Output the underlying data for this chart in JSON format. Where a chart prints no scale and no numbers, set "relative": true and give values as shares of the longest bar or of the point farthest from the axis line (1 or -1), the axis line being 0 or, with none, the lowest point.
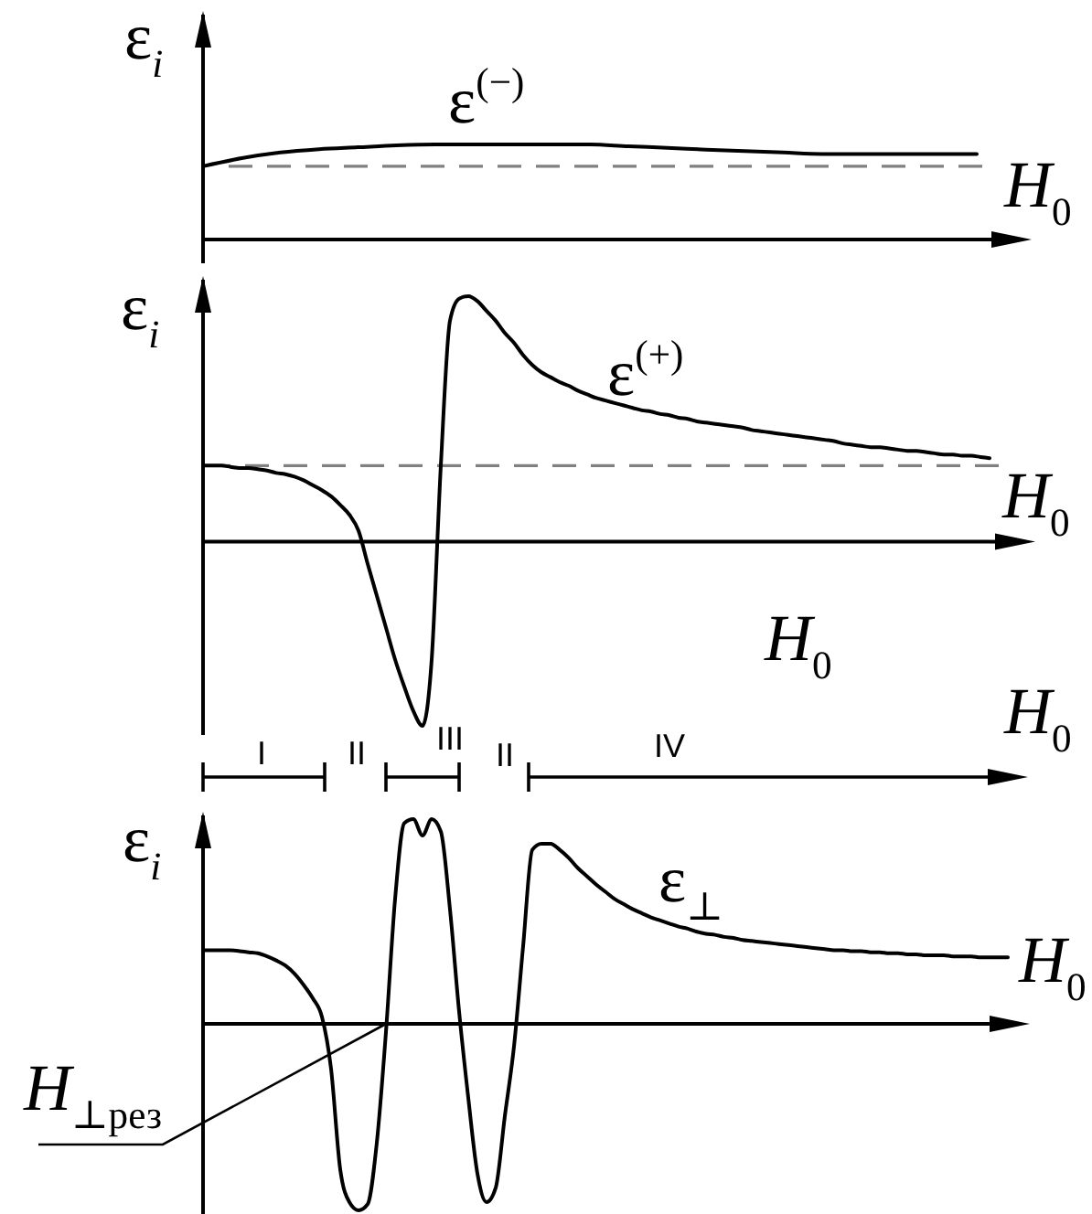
{
  "chart_data": [
    {
      "type": "line",
      "relative": true,
      "ylabel": "ε$_{i}$",
      "xlabel": "H$_{0}$",
      "categories": [
        null,
        null,
        null,
        null,
        null,
        null,
        null,
        null,
        null,
        null,
        null,
        null,
        null,
        null,
        null,
        null,
        null,
        null,
        null,
        null,
        null
      ],
      "series": [
        {
          "name": "ε$^{(−)}$",
          "color": "#000000",
          "values": [
            0.77,
            0.855,
            0.915,
            0.95,
            0.97,
            0.99,
            1,
            1,
            1,
            1,
            1,
            0.98,
            0.965,
            0.945,
            0.93,
            0.915,
            0.9,
            0.9,
            0.9,
            0.9,
            0.9
          ]
        }
      ],
      "ref_lines": [
        {
          "axis": "y",
          "value": 0.77,
          "color": "#808080",
          "line_style": "dashed"
        }
      ]
    },
    {
      "type": "line",
      "relative": true,
      "ylabel": "ε$_{i}$",
      "xlabel": "H$_{0}$",
      "categories": [
        null,
        null,
        null,
        null,
        null,
        null,
        null,
        null,
        null,
        null,
        null,
        null,
        null,
        null,
        null,
        null,
        null,
        null,
        null,
        null,
        null,
        null,
        null,
        null,
        null,
        null,
        null,
        null,
        null,
        null,
        null,
        null,
        null,
        null,
        null,
        null,
        null,
        null,
        null,
        null,
        null,
        null,
        null,
        null,
        null,
        null,
        null,
        null,
        null,
        null,
        null,
        null,
        null,
        null,
        null,
        null,
        null,
        null,
        null,
        null,
        null,
        null,
        null,
        null,
        null,
        null,
        null,
        null,
        null,
        null,
        null,
        null,
        null,
        null,
        null,
        null,
        null,
        null,
        null,
        null,
        null,
        null,
        null,
        null,
        null,
        null,
        null
      ],
      "series": [
        {
          "name": "ε$^{(+)}$",
          "color": "#000000",
          "values": [
            0.31,
            0.31,
            0.31,
            0.305,
            0.3,
            0.3,
            0.295,
            0.29,
            0.28,
            0.275,
            0.265,
            0.25,
            0.23,
            0.21,
            0.185,
            0.15,
            0.11,
            0.045,
            -0.09,
            -0.22,
            -0.35,
            -0.48,
            -0.59,
            -0.69,
            -0.75,
            -0.48,
            0.31,
            0.9,
            0.99,
            1,
            0.98,
            0.94,
            0.9,
            0.85,
            0.81,
            0.76,
            0.72,
            0.69,
            0.67,
            0.65,
            0.635,
            0.615,
            0.6,
            0.585,
            0.575,
            0.565,
            0.555,
            0.545,
            0.535,
            0.53,
            0.52,
            0.515,
            0.505,
            0.5,
            0.49,
            0.485,
            0.48,
            0.475,
            0.47,
            0.465,
            0.455,
            0.45,
            0.445,
            0.44,
            0.435,
            0.43,
            0.425,
            0.42,
            0.415,
            0.41,
            0.4,
            0.395,
            0.39,
            0.385,
            0.385,
            0.38,
            0.375,
            0.37,
            0.37,
            0.365,
            0.36,
            0.355,
            0.355,
            0.35,
            0.35,
            0.345,
            0.34
          ]
        }
      ],
      "ref_lines": [
        {
          "axis": "y",
          "value": 0.31,
          "color": "#808080",
          "line_style": "dashed"
        }
      ],
      "annotations": [
        "H$_{0}$"
      ]
    },
    {
      "type": "other",
      "xlabel": "H$_{0}$",
      "annotations": [
        "I",
        "II",
        "III",
        "II",
        "IV"
      ]
    },
    {
      "type": "line",
      "relative": true,
      "ylabel": "ε$_{i}$",
      "xlabel": "H$_{0}$",
      "categories": [
        null,
        null,
        null,
        null,
        null,
        null,
        null,
        null,
        null,
        null,
        null,
        null,
        null,
        null,
        null,
        null,
        null,
        null,
        null,
        null,
        null,
        null,
        null,
        null,
        null,
        null,
        null,
        null,
        null,
        null,
        null,
        null,
        null,
        null,
        null,
        null,
        null,
        null,
        null,
        null,
        null,
        null,
        null,
        null,
        null,
        null,
        null,
        null,
        null,
        null,
        null,
        null,
        null,
        null,
        null,
        null,
        null,
        null,
        null,
        null,
        null,
        null,
        null,
        null,
        null,
        null,
        null,
        null,
        null,
        null,
        null,
        null,
        null,
        null,
        null,
        null,
        null,
        null,
        null,
        null,
        null,
        null,
        null,
        null,
        null,
        null,
        null,
        null,
        null
      ],
      "series": [
        {
          "name": "ε$_{⊥}$",
          "color": "#000000",
          "values": [
            0.36,
            0.36,
            0.36,
            0.36,
            0.355,
            0.35,
            0.345,
            0.33,
            0.31,
            0.285,
            0.245,
            0.19,
            0.125,
            0.035,
            -0.22,
            -0.71,
            -0.87,
            -0.91,
            -0.88,
            -0.58,
            -0.04,
            0.61,
            0.98,
            1,
            0.92,
            1,
            0.94,
            0.56,
            0.06,
            -0.36,
            -0.73,
            -0.87,
            -0.8,
            -0.45,
            -0.11,
            0.38,
            0.85,
            0.88,
            0.88,
            0.85,
            0.81,
            0.76,
            0.72,
            0.68,
            0.645,
            0.61,
            0.585,
            0.56,
            0.54,
            0.52,
            0.505,
            0.49,
            0.475,
            0.465,
            0.45,
            0.44,
            0.435,
            0.425,
            0.42,
            0.41,
            0.405,
            0.4,
            0.395,
            0.39,
            0.385,
            0.38,
            0.375,
            0.37,
            0.365,
            0.36,
            0.36,
            0.355,
            0.355,
            0.35,
            0.35,
            0.345,
            0.345,
            0.34,
            0.34,
            0.335,
            0.335,
            0.335,
            0.33,
            0.33,
            0.33,
            0.325,
            0.325,
            0.325,
            0.325
          ]
        }
      ],
      "annotations": [
        "H$_{⊥рез}$"
      ]
    }
  ]
}
